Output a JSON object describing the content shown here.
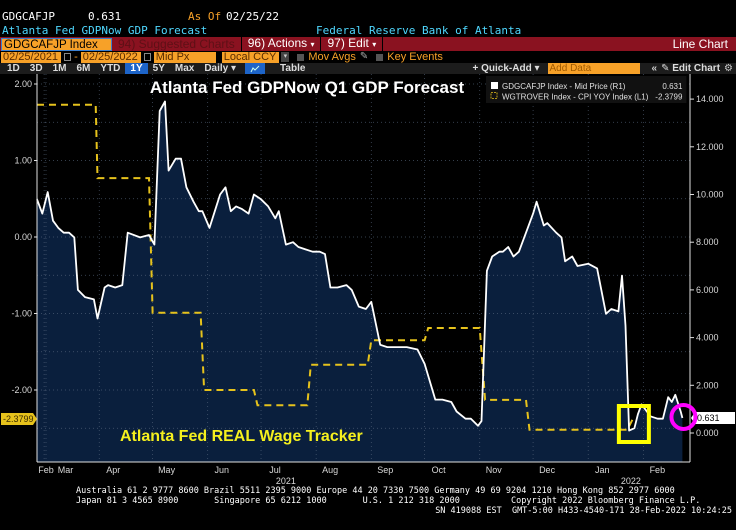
{
  "header": {
    "ticker": "GDGCAFJP",
    "last_value": "0.631",
    "as_of_label": "As Of",
    "as_of_date": "02/25/22",
    "description": "Atlanta Fed GDPNow GDP Forecast",
    "source": "Federal Reserve Bank of Atlanta"
  },
  "toolbar": {
    "security": "GDGCAFJP Index",
    "suggested_charts": "94) Suggested Charts",
    "actions": "96) Actions",
    "edit": "97) Edit",
    "chart_type": "Line Chart",
    "start_date": "02/25/2021",
    "end_date": "02/25/2022",
    "date_separator": "-",
    "price_field": "Mid Px",
    "currency": "Local CCY",
    "mov_avgs": "Mov Avgs",
    "key_events": "Key Events",
    "ranges": [
      "1D",
      "3D",
      "1M",
      "6M",
      "YTD",
      "1Y",
      "5Y",
      "Max"
    ],
    "selected_range": "1Y",
    "frequency": "Daily",
    "table_label": "Table",
    "quick_add": "+ Quick-Add",
    "add_data_placeholder": "Add Data",
    "edit_chart": "Edit Chart"
  },
  "colors": {
    "gdp_line": "#ffffff",
    "gdp_fill": "#0a1f3d",
    "wage_line": "#e6c21c",
    "toolbar_red": "#8a1220",
    "orange": "#f7a128",
    "highlight_box": "#ffff00",
    "highlight_circle": "#ff00ff"
  },
  "chart_data": {
    "type": "line",
    "title": "Atlanta Fed GDPNow Q1 GDP Forecast",
    "annotation": "Atlanta Fed REAL Wage Tracker",
    "legend_position": "top-right",
    "grid": true,
    "x_range": [
      "2021-02-25",
      "2022-02-25"
    ],
    "x_tick_labels": [
      "Feb",
      "Mar",
      "Apr",
      "May",
      "Jun",
      "Jul",
      "Aug",
      "Sep",
      "Oct",
      "Nov",
      "Dec",
      "Jan",
      "Feb"
    ],
    "x_tick_dates": [
      "2021-02-01",
      "2021-03-01",
      "2021-04-01",
      "2021-05-01",
      "2021-06-01",
      "2021-07-01",
      "2021-08-01",
      "2021-09-01",
      "2021-10-01",
      "2021-11-01",
      "2021-12-01",
      "2022-01-01",
      "2022-02-01"
    ],
    "x_year_labels": [
      {
        "label": "2021",
        "date": "2021-07-15"
      },
      {
        "label": "2022",
        "date": "2022-01-25"
      }
    ],
    "left_axis": {
      "ylim": [
        -2.85,
        2.1
      ],
      "ticks": [
        "2.00",
        "1.00",
        "0.00",
        "-1.00",
        "-2.00"
      ],
      "tick_values": [
        2,
        1,
        0,
        -1,
        -2
      ],
      "last_value_label": "-2.3799",
      "last_value": -2.3799
    },
    "right_axis": {
      "ylim": [
        -1.2,
        15.0
      ],
      "ticks": [
        "14.000",
        "12.000",
        "10.000",
        "8.000",
        "6.000",
        "4.000",
        "2.000",
        "0.000"
      ],
      "tick_values": [
        14,
        12,
        10,
        8,
        6,
        4,
        2,
        0
      ],
      "last_value_label": "0.631",
      "last_value": 0.631
    },
    "legend": [
      {
        "name": "GDGCAFJP Index - Mid Price (R1)",
        "value": "0.631"
      },
      {
        "name": "WGTROVER Index - CPI YOY Index (L1)",
        "value": "-2.3799"
      }
    ],
    "series": [
      {
        "name": "GDGCAFJP Index - Mid Price (R1)",
        "axis": "right",
        "style": "area",
        "points": [
          [
            "2021-02-25",
            9.8
          ],
          [
            "2021-02-28",
            9.2
          ],
          [
            "2021-03-03",
            10.1
          ],
          [
            "2021-03-06",
            8.9
          ],
          [
            "2021-03-09",
            8.6
          ],
          [
            "2021-03-12",
            8.4
          ],
          [
            "2021-03-15",
            8.4
          ],
          [
            "2021-03-18",
            8.2
          ],
          [
            "2021-03-20",
            6.0
          ],
          [
            "2021-03-24",
            5.7
          ],
          [
            "2021-03-29",
            5.6
          ],
          [
            "2021-03-31",
            4.8
          ],
          [
            "2021-04-04",
            6.1
          ],
          [
            "2021-04-06",
            6.2
          ],
          [
            "2021-04-10",
            6.1
          ],
          [
            "2021-04-14",
            6.2
          ],
          [
            "2021-04-17",
            8.4
          ],
          [
            "2021-04-24",
            8.2
          ],
          [
            "2021-04-29",
            8.3
          ],
          [
            "2021-05-02",
            7.9
          ],
          [
            "2021-05-05",
            13.5
          ],
          [
            "2021-05-08",
            13.9
          ],
          [
            "2021-05-10",
            11.0
          ],
          [
            "2021-05-14",
            11.5
          ],
          [
            "2021-05-17",
            11.5
          ],
          [
            "2021-05-20",
            10.3
          ],
          [
            "2021-05-24",
            9.7
          ],
          [
            "2021-05-27",
            9.3
          ],
          [
            "2021-05-29",
            9.3
          ],
          [
            "2021-06-02",
            8.6
          ],
          [
            "2021-06-05",
            9.3
          ],
          [
            "2021-06-08",
            10.0
          ],
          [
            "2021-06-11",
            10.3
          ],
          [
            "2021-06-14",
            9.3
          ],
          [
            "2021-06-17",
            9.5
          ],
          [
            "2021-06-20",
            9.4
          ],
          [
            "2021-06-24",
            9.2
          ],
          [
            "2021-06-27",
            10.0
          ],
          [
            "2021-07-01",
            9.8
          ],
          [
            "2021-07-05",
            9.5
          ],
          [
            "2021-07-09",
            9.0
          ],
          [
            "2021-07-11",
            9.3
          ],
          [
            "2021-07-15",
            7.9
          ],
          [
            "2021-07-19",
            8.0
          ],
          [
            "2021-07-22",
            7.8
          ],
          [
            "2021-07-26",
            7.7
          ],
          [
            "2021-07-30",
            7.6
          ],
          [
            "2021-08-03",
            7.6
          ],
          [
            "2021-08-06",
            7.5
          ],
          [
            "2021-08-09",
            6.1
          ],
          [
            "2021-08-13",
            6.1
          ],
          [
            "2021-08-18",
            6.2
          ],
          [
            "2021-08-21",
            6.0
          ],
          [
            "2021-08-25",
            5.3
          ],
          [
            "2021-08-29",
            5.2
          ],
          [
            "2021-09-01",
            5.5
          ],
          [
            "2021-09-06",
            3.7
          ],
          [
            "2021-09-10",
            3.6
          ],
          [
            "2021-09-16",
            3.6
          ],
          [
            "2021-09-21",
            3.6
          ],
          [
            "2021-09-27",
            3.5
          ],
          [
            "2021-10-01",
            2.9
          ],
          [
            "2021-10-07",
            1.4
          ],
          [
            "2021-10-11",
            1.4
          ],
          [
            "2021-10-16",
            1.3
          ],
          [
            "2021-10-19",
            0.9
          ],
          [
            "2021-10-24",
            0.6
          ],
          [
            "2021-10-27",
            0.6
          ],
          [
            "2021-10-31",
            0.3
          ],
          [
            "2021-11-02",
            0.5
          ],
          [
            "2021-11-05",
            6.8
          ],
          [
            "2021-11-08",
            7.4
          ],
          [
            "2021-11-12",
            7.6
          ],
          [
            "2021-11-14",
            7.6
          ],
          [
            "2021-11-17",
            7.8
          ],
          [
            "2021-11-20",
            7.4
          ],
          [
            "2021-11-23",
            7.6
          ],
          [
            "2021-11-27",
            8.4
          ],
          [
            "2021-12-01",
            9.2
          ],
          [
            "2021-12-03",
            9.7
          ],
          [
            "2021-12-07",
            8.7
          ],
          [
            "2021-12-09",
            8.8
          ],
          [
            "2021-12-14",
            8.4
          ],
          [
            "2021-12-17",
            8.2
          ],
          [
            "2021-12-19",
            7.2
          ],
          [
            "2021-12-23",
            7.4
          ],
          [
            "2021-12-26",
            7.0
          ],
          [
            "2022-01-01",
            7.1
          ],
          [
            "2022-01-06",
            6.9
          ],
          [
            "2022-01-11",
            5.0
          ],
          [
            "2022-01-14",
            5.2
          ],
          [
            "2022-01-18",
            5.1
          ],
          [
            "2022-01-20",
            6.6
          ],
          [
            "2022-01-22",
            4.5
          ],
          [
            "2022-01-24",
            0.1
          ],
          [
            "2022-01-27",
            0.2
          ],
          [
            "2022-01-29",
            0.8
          ],
          [
            "2022-01-31",
            1.2
          ],
          [
            "2022-02-02",
            1.0
          ],
          [
            "2022-02-05",
            0.7
          ],
          [
            "2022-02-09",
            0.6
          ],
          [
            "2022-02-12",
            0.6
          ],
          [
            "2022-02-15",
            1.5
          ],
          [
            "2022-02-17",
            1.3
          ],
          [
            "2022-02-19",
            1.6
          ],
          [
            "2022-02-22",
            0.9
          ],
          [
            "2022-02-23",
            0.631
          ]
        ]
      },
      {
        "name": "WGTROVER Index - CPI YOY Index (L1)",
        "axis": "left",
        "style": "step-dashed",
        "points": [
          [
            "2021-02-25",
            1.73
          ],
          [
            "2021-03-30",
            1.73
          ],
          [
            "2021-03-31",
            0.77
          ],
          [
            "2021-04-29",
            0.77
          ],
          [
            "2021-05-01",
            -0.99
          ],
          [
            "2021-05-28",
            -0.99
          ],
          [
            "2021-05-30",
            -2.0
          ],
          [
            "2021-06-27",
            -2.0
          ],
          [
            "2021-06-29",
            -2.2
          ],
          [
            "2021-07-27",
            -2.2
          ],
          [
            "2021-07-29",
            -1.67
          ],
          [
            "2021-08-30",
            -1.67
          ],
          [
            "2021-09-01",
            -1.35
          ],
          [
            "2021-10-01",
            -1.35
          ],
          [
            "2021-10-03",
            -1.19
          ],
          [
            "2021-11-01",
            -1.19
          ],
          [
            "2021-11-04",
            -2.13
          ],
          [
            "2021-11-27",
            -2.13
          ],
          [
            "2021-11-29",
            -2.52
          ],
          [
            "2022-01-23",
            -2.52
          ],
          [
            "2022-01-26",
            -2.38
          ]
        ]
      }
    ],
    "highlights": [
      {
        "shape": "square",
        "color": "#ffff00",
        "date": "2022-01-25",
        "axis": "right",
        "value": 0.0
      },
      {
        "shape": "circle",
        "color": "#ff00ff",
        "date": "2022-02-23",
        "axis": "right",
        "value": 0.631
      }
    ]
  },
  "footer": {
    "line1": "Australia 61 2 9777 8600 Brazil 5511 2395 9000 Europe 44 20 7330 7500 Germany 49 69 9204 1210 Hong Kong 852 2977 6000",
    "line2": "Japan 81 3 4565 8900       Singapore 65 6212 1000       U.S. 1 212 318 2000          Copyright 2022 Bloomberg Finance L.P.",
    "line3": "SN 419088 EST  GMT-5:00 H433-4540-171 28-Feb-2022 10:24:25"
  }
}
